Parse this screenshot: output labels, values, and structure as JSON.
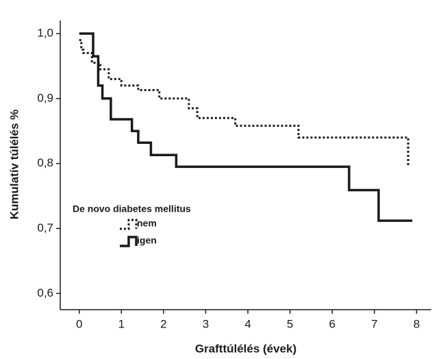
{
  "chart_data": {
    "type": "step",
    "xlabel": "Grafttúlélés (évek)",
    "ylabel": "Kumulatív túlélés %",
    "legend_title": "De novo diabetes mellitus",
    "legend_position": "lower left",
    "xlim": [
      -0.45,
      8.35
    ],
    "ylim": [
      0.575,
      1.02
    ],
    "xticks": [
      0,
      1,
      2,
      3,
      4,
      5,
      6,
      7,
      8
    ],
    "yticks": [
      {
        "value": 0.6,
        "label": "0,6"
      },
      {
        "value": 0.7,
        "label": "0,7"
      },
      {
        "value": 0.8,
        "label": "0,8"
      },
      {
        "value": 0.9,
        "label": "0,9"
      },
      {
        "value": 1.0,
        "label": "1,0"
      }
    ],
    "series": [
      {
        "name": "nem",
        "color": "#1a1a1a",
        "style": "dotted",
        "x": [
          0,
          0.05,
          0.1,
          0.3,
          0.5,
          0.7,
          1.0,
          1.4,
          1.9,
          2.6,
          2.8,
          3.7,
          5.2,
          7.8
        ],
        "values": [
          0.99,
          0.975,
          0.97,
          0.955,
          0.945,
          0.93,
          0.92,
          0.913,
          0.9,
          0.885,
          0.87,
          0.858,
          0.84,
          0.795
        ]
      },
      {
        "name": "igen",
        "color": "#1a1a1a",
        "style": "solid",
        "x": [
          0,
          0.33,
          0.45,
          0.55,
          0.75,
          1.25,
          1.4,
          1.7,
          2.3,
          6.4,
          7.1,
          7.9
        ],
        "values": [
          1.0,
          0.965,
          0.92,
          0.9,
          0.868,
          0.85,
          0.832,
          0.813,
          0.795,
          0.759,
          0.712,
          0.712
        ]
      }
    ]
  }
}
